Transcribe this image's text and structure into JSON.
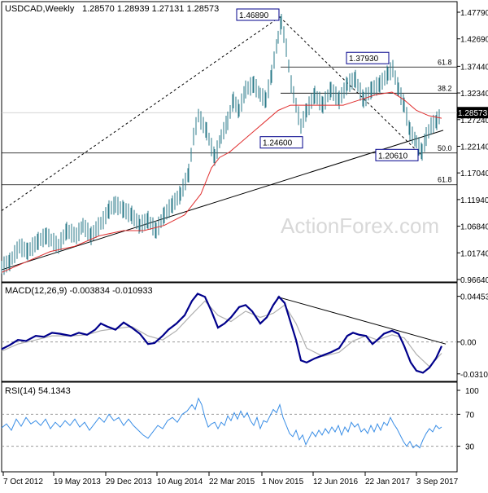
{
  "header": {
    "title": "USDCAD,Weekly",
    "ohlc": "1.28570 1.28939 1.27131 1.28573"
  },
  "watermark": "ActionForex.com",
  "colors": {
    "price": "#2a7a88",
    "ma": "#e03030",
    "macd": "#00008b",
    "signal": "#b0b0b0",
    "rsi": "#3a8ee6",
    "trend": "#000000"
  },
  "chart_data": [
    {
      "type": "line",
      "title": "USDCAD,Weekly",
      "series": [],
      "x_ticks": [
        "7 Oct 2012",
        "19 May 2013",
        "29 Dec 2013",
        "10 Aug 2014",
        "22 Mar 2015",
        "1 Nov 2015",
        "12 Jun 2016",
        "22 Jan 2017",
        "3 Sep 2017"
      ],
      "y_ticks": [
        "1.47790",
        "1.42690",
        "1.37440",
        "1.32340",
        "1.27240",
        "1.22140",
        "1.17040",
        "1.11940",
        "1.06840",
        "1.01740",
        "0.96640"
      ],
      "ylim": [
        0.9664,
        1.4779
      ],
      "current_price": "1.28573",
      "price_path": [
        [
          0,
          0.99
        ],
        [
          10,
          1.0
        ],
        [
          22,
          1.03
        ],
        [
          32,
          1.02
        ],
        [
          45,
          1.04
        ],
        [
          55,
          1.05
        ],
        [
          70,
          1.03
        ],
        [
          80,
          1.06
        ],
        [
          92,
          1.05
        ],
        [
          100,
          1.07
        ],
        [
          110,
          1.05
        ],
        [
          125,
          1.08
        ],
        [
          132,
          1.1
        ],
        [
          140,
          1.11
        ],
        [
          150,
          1.1
        ],
        [
          160,
          1.09
        ],
        [
          170,
          1.07
        ],
        [
          180,
          1.08
        ],
        [
          190,
          1.06
        ],
        [
          200,
          1.09
        ],
        [
          210,
          1.11
        ],
        [
          220,
          1.13
        ],
        [
          230,
          1.17
        ],
        [
          236,
          1.24
        ],
        [
          242,
          1.28
        ],
        [
          252,
          1.25
        ],
        [
          262,
          1.2
        ],
        [
          270,
          1.24
        ],
        [
          278,
          1.27
        ],
        [
          285,
          1.31
        ],
        [
          292,
          1.29
        ],
        [
          300,
          1.33
        ],
        [
          310,
          1.34
        ],
        [
          318,
          1.32
        ],
        [
          325,
          1.31
        ],
        [
          332,
          1.36
        ],
        [
          340,
          1.43
        ],
        [
          344,
          1.46
        ],
        [
          350,
          1.41
        ],
        [
          356,
          1.34
        ],
        [
          362,
          1.3
        ],
        [
          368,
          1.26
        ],
        [
          375,
          1.29
        ],
        [
          385,
          1.32
        ],
        [
          395,
          1.3
        ],
        [
          405,
          1.33
        ],
        [
          415,
          1.31
        ],
        [
          425,
          1.34
        ],
        [
          435,
          1.35
        ],
        [
          445,
          1.31
        ],
        [
          455,
          1.33
        ],
        [
          465,
          1.34
        ],
        [
          475,
          1.36
        ],
        [
          481,
          1.37
        ],
        [
          488,
          1.33
        ],
        [
          495,
          1.3
        ],
        [
          502,
          1.25
        ],
        [
          510,
          1.23
        ],
        [
          517,
          1.21
        ],
        [
          522,
          1.24
        ],
        [
          528,
          1.26
        ],
        [
          535,
          1.27
        ],
        [
          541,
          1.2857
        ]
      ],
      "ma_path": [
        [
          0,
          0.98
        ],
        [
          30,
          1.0
        ],
        [
          60,
          1.02
        ],
        [
          90,
          1.03
        ],
        [
          120,
          1.05
        ],
        [
          150,
          1.06
        ],
        [
          175,
          1.06
        ],
        [
          200,
          1.07
        ],
        [
          225,
          1.09
        ],
        [
          245,
          1.13
        ],
        [
          258,
          1.18
        ],
        [
          268,
          1.2
        ],
        [
          280,
          1.21
        ],
        [
          295,
          1.23
        ],
        [
          310,
          1.25
        ],
        [
          325,
          1.27
        ],
        [
          340,
          1.29
        ],
        [
          355,
          1.3
        ],
        [
          370,
          1.3
        ],
        [
          385,
          1.3
        ],
        [
          400,
          1.3
        ],
        [
          420,
          1.3
        ],
        [
          440,
          1.31
        ],
        [
          460,
          1.32
        ],
        [
          480,
          1.325
        ],
        [
          495,
          1.31
        ],
        [
          510,
          1.29
        ],
        [
          525,
          1.28
        ],
        [
          541,
          1.275
        ]
      ],
      "annotations": [
        {
          "text": "1.46890",
          "x": 344,
          "y": 1.4689
        },
        {
          "text": "1.37930",
          "x": 481,
          "y": 1.3793
        },
        {
          "text": "1.24600",
          "x": 368,
          "y": 1.246
        },
        {
          "text": "1.20610",
          "x": 517,
          "y": 1.2061
        }
      ],
      "fib_levels": [
        {
          "label": "61.8",
          "value": 1.373
        },
        {
          "label": "38.2",
          "value": 1.323
        },
        {
          "label": "50.0",
          "value": 1.2085
        },
        {
          "label": "61.8",
          "value": 1.1477
        }
      ]
    },
    {
      "type": "line",
      "title": "MACD(12,26,9) -0.003834 -0.010933",
      "y_ticks": [
        "0.044534",
        "0.00",
        "-0.031072"
      ],
      "ylim": [
        -0.036,
        0.049
      ],
      "series": [],
      "macd_path": [
        [
          0,
          -0.007
        ],
        [
          10,
          -0.003
        ],
        [
          20,
          0.002
        ],
        [
          30,
          0.001
        ],
        [
          42,
          0.006
        ],
        [
          52,
          0.005
        ],
        [
          62,
          0.009
        ],
        [
          72,
          0.008
        ],
        [
          85,
          0.006
        ],
        [
          95,
          0.009
        ],
        [
          105,
          0.007
        ],
        [
          115,
          0.012
        ],
        [
          122,
          0.018
        ],
        [
          130,
          0.015
        ],
        [
          140,
          0.012
        ],
        [
          150,
          0.019
        ],
        [
          160,
          0.014
        ],
        [
          170,
          0.008
        ],
        [
          180,
          -0.002
        ],
        [
          188,
          -0.001
        ],
        [
          198,
          0.006
        ],
        [
          205,
          0.012
        ],
        [
          215,
          0.018
        ],
        [
          225,
          0.026
        ],
        [
          234,
          0.04
        ],
        [
          241,
          0.047
        ],
        [
          250,
          0.044
        ],
        [
          258,
          0.03
        ],
        [
          266,
          0.014
        ],
        [
          274,
          0.018
        ],
        [
          282,
          0.024
        ],
        [
          292,
          0.034
        ],
        [
          300,
          0.036
        ],
        [
          308,
          0.03
        ],
        [
          318,
          0.018
        ],
        [
          326,
          0.024
        ],
        [
          334,
          0.036
        ],
        [
          341,
          0.044
        ],
        [
          348,
          0.038
        ],
        [
          355,
          0.02
        ],
        [
          362,
          0.002
        ],
        [
          368,
          -0.018
        ],
        [
          375,
          -0.02
        ],
        [
          385,
          -0.016
        ],
        [
          395,
          -0.013
        ],
        [
          405,
          -0.01
        ],
        [
          415,
          -0.006
        ],
        [
          425,
          0.006
        ],
        [
          432,
          0.009
        ],
        [
          440,
          0.007
        ],
        [
          448,
          0.006
        ],
        [
          456,
          -0.002
        ],
        [
          462,
          0.002
        ],
        [
          470,
          0.008
        ],
        [
          480,
          0.011
        ],
        [
          488,
          0.008
        ],
        [
          495,
          -0.004
        ],
        [
          503,
          -0.02
        ],
        [
          510,
          -0.028
        ],
        [
          518,
          -0.03
        ],
        [
          526,
          -0.025
        ],
        [
          534,
          -0.016
        ],
        [
          541,
          -0.004
        ]
      ],
      "signal_path": [
        [
          0,
          -0.009
        ],
        [
          20,
          -0.002
        ],
        [
          42,
          0.002
        ],
        [
          62,
          0.006
        ],
        [
          85,
          0.006
        ],
        [
          105,
          0.007
        ],
        [
          122,
          0.011
        ],
        [
          140,
          0.013
        ],
        [
          160,
          0.015
        ],
        [
          180,
          0.006
        ],
        [
          198,
          0.002
        ],
        [
          215,
          0.011
        ],
        [
          234,
          0.027
        ],
        [
          250,
          0.04
        ],
        [
          266,
          0.026
        ],
        [
          282,
          0.02
        ],
        [
          300,
          0.03
        ],
        [
          318,
          0.024
        ],
        [
          334,
          0.028
        ],
        [
          348,
          0.036
        ],
        [
          362,
          0.018
        ],
        [
          375,
          -0.006
        ],
        [
          395,
          -0.014
        ],
        [
          415,
          -0.01
        ],
        [
          432,
          0.001
        ],
        [
          448,
          0.006
        ],
        [
          462,
          0.002
        ],
        [
          480,
          0.007
        ],
        [
          495,
          0.004
        ],
        [
          510,
          -0.012
        ],
        [
          526,
          -0.024
        ],
        [
          541,
          -0.011
        ]
      ]
    },
    {
      "type": "line",
      "title": "RSI(14) 54.1343",
      "y_ticks": [
        "100",
        "70",
        "30",
        "0"
      ],
      "ylim": [
        0,
        100
      ],
      "series": [],
      "rsi_path": [
        [
          0,
          53
        ],
        [
          6,
          58
        ],
        [
          12,
          50
        ],
        [
          18,
          64
        ],
        [
          24,
          55
        ],
        [
          30,
          66
        ],
        [
          36,
          58
        ],
        [
          42,
          62
        ],
        [
          48,
          56
        ],
        [
          54,
          64
        ],
        [
          60,
          52
        ],
        [
          66,
          60
        ],
        [
          72,
          54
        ],
        [
          78,
          62
        ],
        [
          84,
          56
        ],
        [
          90,
          64
        ],
        [
          96,
          54
        ],
        [
          102,
          60
        ],
        [
          108,
          50
        ],
        [
          114,
          58
        ],
        [
          120,
          66
        ],
        [
          126,
          60
        ],
        [
          132,
          70
        ],
        [
          138,
          62
        ],
        [
          144,
          66
        ],
        [
          150,
          56
        ],
        [
          156,
          64
        ],
        [
          162,
          56
        ],
        [
          168,
          50
        ],
        [
          174,
          44
        ],
        [
          180,
          40
        ],
        [
          186,
          48
        ],
        [
          192,
          56
        ],
        [
          198,
          52
        ],
        [
          204,
          62
        ],
        [
          210,
          66
        ],
        [
          216,
          60
        ],
        [
          222,
          70
        ],
        [
          228,
          74
        ],
        [
          234,
          82
        ],
        [
          238,
          76
        ],
        [
          242,
          90
        ],
        [
          246,
          82
        ],
        [
          250,
          66
        ],
        [
          254,
          54
        ],
        [
          258,
          58
        ],
        [
          262,
          60
        ],
        [
          266,
          52
        ],
        [
          270,
          60
        ],
        [
          274,
          56
        ],
        [
          278,
          68
        ],
        [
          282,
          62
        ],
        [
          286,
          72
        ],
        [
          290,
          64
        ],
        [
          294,
          74
        ],
        [
          298,
          66
        ],
        [
          302,
          72
        ],
        [
          306,
          62
        ],
        [
          310,
          56
        ],
        [
          314,
          66
        ],
        [
          318,
          52
        ],
        [
          322,
          62
        ],
        [
          326,
          60
        ],
        [
          330,
          68
        ],
        [
          334,
          76
        ],
        [
          338,
          72
        ],
        [
          342,
          82
        ],
        [
          346,
          66
        ],
        [
          350,
          56
        ],
        [
          354,
          46
        ],
        [
          358,
          42
        ],
        [
          362,
          50
        ],
        [
          366,
          38
        ],
        [
          370,
          44
        ],
        [
          374,
          32
        ],
        [
          378,
          40
        ],
        [
          382,
          48
        ],
        [
          386,
          42
        ],
        [
          390,
          50
        ],
        [
          394,
          44
        ],
        [
          398,
          52
        ],
        [
          402,
          46
        ],
        [
          406,
          54
        ],
        [
          410,
          48
        ],
        [
          414,
          56
        ],
        [
          418,
          44
        ],
        [
          422,
          54
        ],
        [
          426,
          48
        ],
        [
          430,
          60
        ],
        [
          434,
          54
        ],
        [
          438,
          58
        ],
        [
          442,
          48
        ],
        [
          446,
          52
        ],
        [
          450,
          46
        ],
        [
          454,
          56
        ],
        [
          458,
          48
        ],
        [
          462,
          58
        ],
        [
          466,
          50
        ],
        [
          470,
          60
        ],
        [
          474,
          56
        ],
        [
          478,
          66
        ],
        [
          482,
          58
        ],
        [
          486,
          52
        ],
        [
          490,
          44
        ],
        [
          494,
          36
        ],
        [
          498,
          30
        ],
        [
          502,
          36
        ],
        [
          506,
          28
        ],
        [
          510,
          32
        ],
        [
          514,
          28
        ],
        [
          518,
          38
        ],
        [
          522,
          46
        ],
        [
          526,
          52
        ],
        [
          530,
          48
        ],
        [
          534,
          56
        ],
        [
          538,
          52
        ],
        [
          541,
          54
        ]
      ]
    }
  ]
}
